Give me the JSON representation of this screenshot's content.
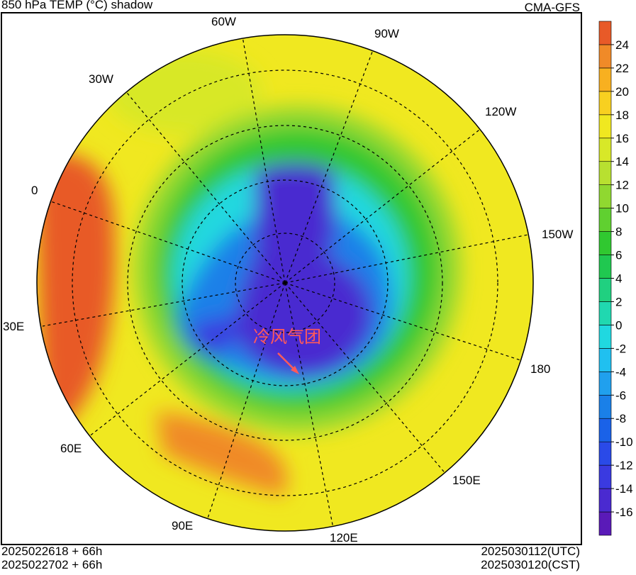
{
  "header": {
    "title": "850 hPa TEMP (°C) shadow",
    "source": "CMA-GFS"
  },
  "longitude_labels": [
    "60W",
    "90W",
    "30W",
    "120W",
    "0",
    "150W",
    "30E",
    "180",
    "60E",
    "150E",
    "90E",
    "120E"
  ],
  "annotation": "冷风气团",
  "footer": {
    "init_utc": "2025022618 + 66h",
    "init_cst": "2025022702 + 66h",
    "valid_utc": "2025030112(UTC)",
    "valid_cst": "2025030120(CST)"
  },
  "colorbar": {
    "clim": [
      -18,
      26
    ],
    "ticks": [
      24,
      22,
      20,
      18,
      16,
      14,
      12,
      10,
      8,
      6,
      4,
      2,
      0,
      -2,
      -4,
      -6,
      -8,
      -10,
      -12,
      -14,
      -16
    ],
    "colors": [
      "#5a1ab8",
      "#4a2ad0",
      "#3a3ae0",
      "#2a4ae8",
      "#1a62e8",
      "#1a80e8",
      "#20a0ee",
      "#20c0f0",
      "#20d8e0",
      "#20d8b0",
      "#20d080",
      "#20c850",
      "#30c830",
      "#60d030",
      "#90d830",
      "#b8e030",
      "#d8e828",
      "#f0e820",
      "#f8d020",
      "#f8b020",
      "#f08a28",
      "#e85a28"
    ]
  }
}
